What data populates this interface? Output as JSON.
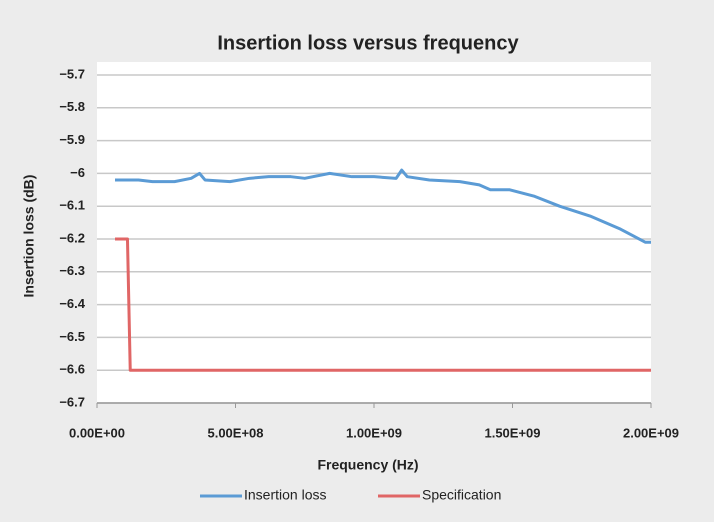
{
  "chart_data": {
    "type": "line",
    "title": "Insertion loss versus frequency",
    "x_label": "Frequency (Hz)",
    "y_label": "Insertion loss (dB)",
    "xlim": [
      0,
      2000000000
    ],
    "xticks": [
      {
        "value": 0,
        "label": "0.00E+00"
      },
      {
        "value": 500000000,
        "label": "5.00E+08"
      },
      {
        "value": 1000000000,
        "label": "1.00E+09"
      },
      {
        "value": 1500000000,
        "label": "1.50E+09"
      },
      {
        "value": 2000000000,
        "label": "2.00E+09"
      }
    ],
    "ylim": [
      -6.7,
      -5.7
    ],
    "yticks": [
      {
        "value": -5.7,
        "label": "−5.7"
      },
      {
        "value": -5.8,
        "label": "−5.8"
      },
      {
        "value": -5.9,
        "label": "−5.9"
      },
      {
        "value": -6,
        "label": "−6"
      },
      {
        "value": -6.1,
        "label": "−6.1"
      },
      {
        "value": -6.2,
        "label": "−6.2"
      },
      {
        "value": -6.3,
        "label": "−6.3"
      },
      {
        "value": -6.4,
        "label": "−6.4"
      },
      {
        "value": -6.5,
        "label": "−6.5"
      },
      {
        "value": -6.6,
        "label": "−6.6"
      },
      {
        "value": -6.7,
        "label": "−6.7"
      }
    ],
    "grid": true,
    "legend": "bottom",
    "series": [
      {
        "name": "Insertion loss",
        "color": "#5b9bd5",
        "x": [
          65000000,
          150000000,
          200000000,
          280000000,
          340000000,
          370000000,
          390000000,
          480000000,
          550000000,
          620000000,
          700000000,
          750000000,
          840000000,
          920000000,
          1000000000,
          1080000000,
          1100000000,
          1120000000,
          1200000000,
          1310000000,
          1380000000,
          1420000000,
          1490000000,
          1580000000,
          1670000000,
          1780000000,
          1890000000,
          1980000000,
          2000000000
        ],
        "values": [
          -6.02,
          -6.02,
          -6.025,
          -6.025,
          -6.015,
          -6.0,
          -6.02,
          -6.025,
          -6.015,
          -6.01,
          -6.01,
          -6.015,
          -6.0,
          -6.01,
          -6.01,
          -6.015,
          -5.99,
          -6.01,
          -6.02,
          -6.025,
          -6.035,
          -6.05,
          -6.05,
          -6.07,
          -6.1,
          -6.13,
          -6.17,
          -6.21,
          -6.21
        ]
      },
      {
        "name": "Specification",
        "color": "#e06666",
        "x": [
          65000000,
          110000000,
          120000000,
          2000000000
        ],
        "values": [
          -6.2,
          -6.2,
          -6.6,
          -6.6
        ]
      }
    ]
  }
}
